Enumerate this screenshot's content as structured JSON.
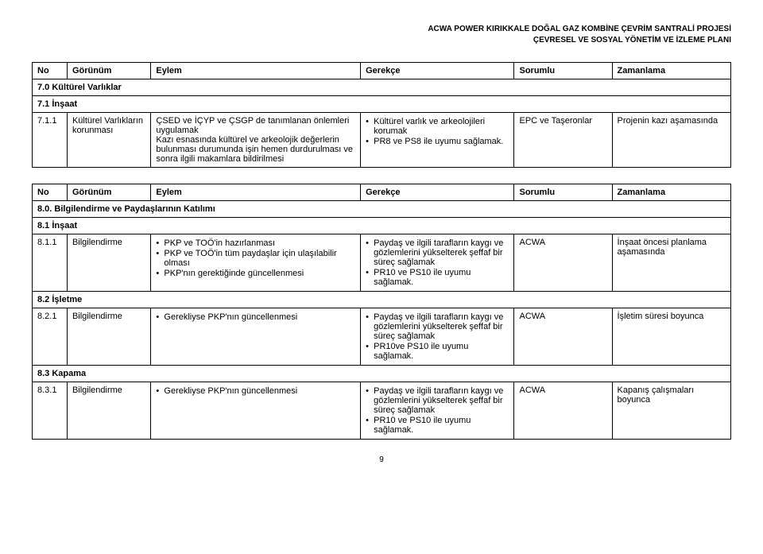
{
  "header": {
    "line1": "ACWA POWER KIRIKKALE DOĞAL GAZ KOMBİNE ÇEVRİM SANTRALİ PROJESİ",
    "line2": "ÇEVRESEL VE SOSYAL YÖNETİM VE İZLEME PLANI"
  },
  "columns": {
    "no": "No",
    "gorunum": "Görünüm",
    "eylem": "Eylem",
    "gerekce": "Gerekçe",
    "sorumlu": "Sorumlu",
    "zaman": "Zamanlama"
  },
  "table7": {
    "section": {
      "no": "7.0",
      "label": "Kültürel Varlıklar"
    },
    "sub": {
      "no": "7.1",
      "label": "İnşaat"
    },
    "row": {
      "no": "7.1.1",
      "gorunum": "Kültürel Varlıkların korunması",
      "eylem": "ÇSED ve İÇYP ve ÇSGP de tanımlanan önlemleri uygulamak\nKazı esnasında kültürel ve arkeolojik değerlerin bulunması durumunda işin hemen durdurulması ve sonra ilgili makamlara bildirilmesi",
      "gerekce": [
        "Kültürel varlık ve arkeolojileri korumak",
        "PR8 ve PS8 ile uyumu sağlamak."
      ],
      "sorumlu": "EPC ve Taşeronlar",
      "zaman": "Projenin kazı aşamasında"
    }
  },
  "table8": {
    "section": {
      "no": "8.0.",
      "label": "Bilgilendirme ve Paydaşlarının Katılımı"
    },
    "sub1": {
      "no": "8.1",
      "label": "İnşaat"
    },
    "row811": {
      "no": "8.1.1",
      "gorunum": "Bilgilendirme",
      "eylem": [
        "PKP ve TOÖ'in hazırlanması",
        "PKP ve TOÖ'in tüm paydaşlar için ulaşılabilir olması",
        "PKP'nın gerektiğinde güncellenmesi"
      ],
      "gerekce": [
        "Paydaş ve ilgili tarafların kaygı ve gözlemlerini yükselterek şeffaf bir süreç sağlamak",
        "PR10 ve PS10 ile uyumu sağlamak."
      ],
      "sorumlu": "ACWA",
      "zaman": "İnşaat öncesi planlama aşamasında"
    },
    "sub2": {
      "no": "8.2",
      "label": "İşletme"
    },
    "row821": {
      "no": "8.2.1",
      "gorunum": "Bilgilendirme",
      "eylem": [
        "Gerekliyse PKP'nın güncellenmesi"
      ],
      "gerekce": [
        "Paydaş ve ilgili tarafların kaygı ve gözlemlerini yükselterek şeffaf bir süreç sağlamak",
        "PR10ve PS10 ile uyumu sağlamak."
      ],
      "sorumlu": "ACWA",
      "zaman": "İşletim süresi boyunca"
    },
    "sub3": {
      "no": "8.3",
      "label": "Kapama"
    },
    "row831": {
      "no": "8.3.1",
      "gorunum": "Bilgilendirme",
      "eylem": [
        "Gerekliyse PKP'nın güncellenmesi"
      ],
      "gerekce": [
        "Paydaş ve ilgili tarafların kaygı ve gözlemlerini yükselterek şeffaf bir süreç sağlamak",
        "PR10 ve PS10 ile uyumu sağlamak."
      ],
      "sorumlu": "ACWA",
      "zaman": "Kapanış çalışmaları boyunca"
    }
  },
  "pageNum": "9"
}
